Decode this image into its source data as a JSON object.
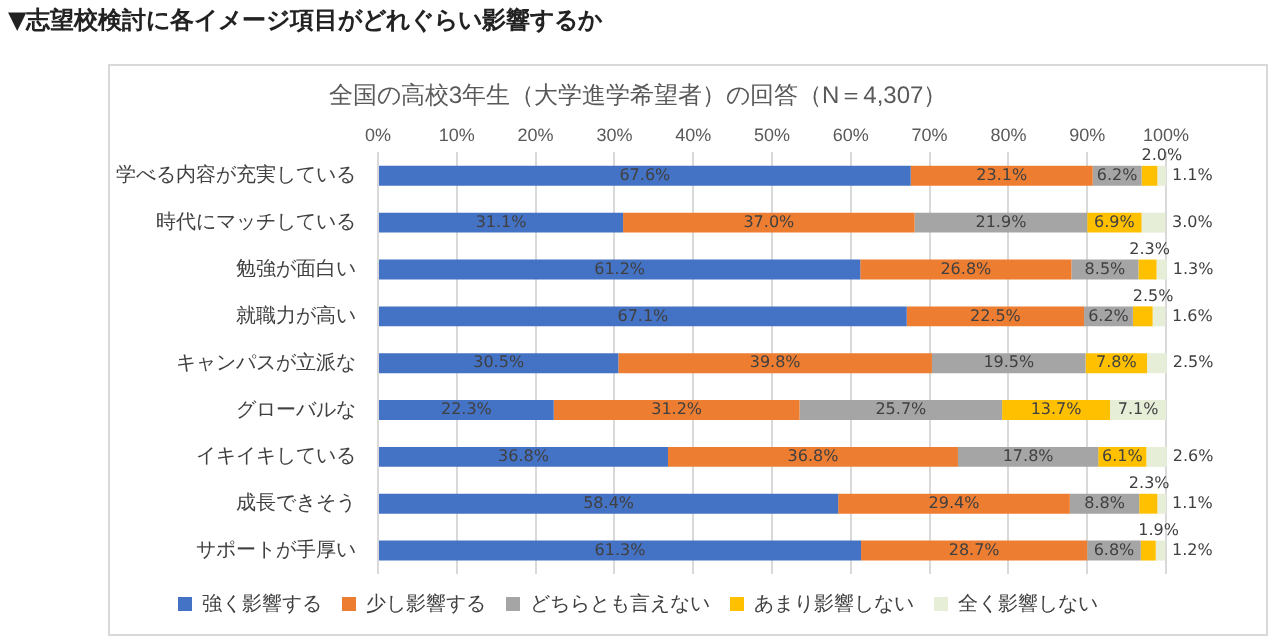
{
  "chart_data": {
    "type": "bar",
    "orientation": "horizontal",
    "stacked": true,
    "title": "▼志望校検討に各イメージ項目がどれぐらい影響するか",
    "subtitle": "全国の高校3年生（大学進学希望者）の回答（N＝4,307）",
    "categories": [
      "学べる内容が充実している",
      "時代にマッチしている",
      "勉強が面白い",
      "就職力が高い",
      "キャンパスが立派な",
      "グローバルな",
      "イキイキしている",
      "成長できそう",
      "サポートが手厚い"
    ],
    "series": [
      {
        "name": "強く影響する",
        "color": "#4472c4",
        "values": [
          67.6,
          31.1,
          61.2,
          67.1,
          30.5,
          22.3,
          36.8,
          58.4,
          61.3
        ],
        "value_labels": [
          "67.6%",
          "31.1%",
          "61.2%",
          "67.1%",
          "30.5%",
          "22.3%",
          "36.8%",
          "58.4%",
          "61.3%"
        ]
      },
      {
        "name": "少し影響する",
        "color": "#ed7d31",
        "values": [
          23.1,
          37.0,
          26.8,
          22.5,
          39.8,
          31.2,
          36.8,
          29.4,
          28.7
        ],
        "value_labels": [
          "23.1%",
          "37.0%",
          "26.8%",
          "22.5%",
          "39.8%",
          "31.2%",
          "36.8%",
          "29.4%",
          "28.7%"
        ]
      },
      {
        "name": "どちらとも言えない",
        "color": "#a5a5a5",
        "values": [
          6.2,
          21.9,
          8.5,
          6.2,
          19.5,
          25.7,
          17.8,
          8.8,
          6.8
        ],
        "value_labels": [
          "6.2%",
          "21.9%",
          "8.5%",
          "6.2%",
          "19.5%",
          "25.7%",
          "17.8%",
          "8.8%",
          "6.8%"
        ]
      },
      {
        "name": "あまり影響しない",
        "color": "#ffc000",
        "values": [
          2.0,
          6.9,
          2.3,
          2.5,
          7.8,
          13.7,
          6.1,
          2.3,
          1.9
        ],
        "value_labels": [
          "2.0%",
          "6.9%",
          "2.3%",
          "2.5%",
          "7.8%",
          "13.7%",
          "6.1%",
          "2.3%",
          "1.9%"
        ]
      },
      {
        "name": "全く影響しない",
        "color": "#e6eed8",
        "values": [
          1.1,
          3.0,
          1.3,
          1.6,
          2.5,
          7.1,
          2.6,
          1.1,
          1.2
        ],
        "value_labels": [
          "1.1%",
          "3.0%",
          "1.3%",
          "1.6%",
          "2.5%",
          "7.1%",
          "2.6%",
          "1.1%",
          "1.2%"
        ]
      }
    ],
    "xlim": [
      0,
      100
    ],
    "xticks": [
      {
        "value": 0,
        "label": "0%"
      },
      {
        "value": 10,
        "label": "10%"
      },
      {
        "value": 20,
        "label": "20%"
      },
      {
        "value": 30,
        "label": "30%"
      },
      {
        "value": 40,
        "label": "40%"
      },
      {
        "value": 50,
        "label": "50%"
      },
      {
        "value": 60,
        "label": "60%"
      },
      {
        "value": 70,
        "label": "70%"
      },
      {
        "value": 80,
        "label": "80%"
      },
      {
        "value": 90,
        "label": "90%"
      },
      {
        "value": 100,
        "label": "100%"
      }
    ],
    "grid": "x",
    "legend": "bottom"
  }
}
